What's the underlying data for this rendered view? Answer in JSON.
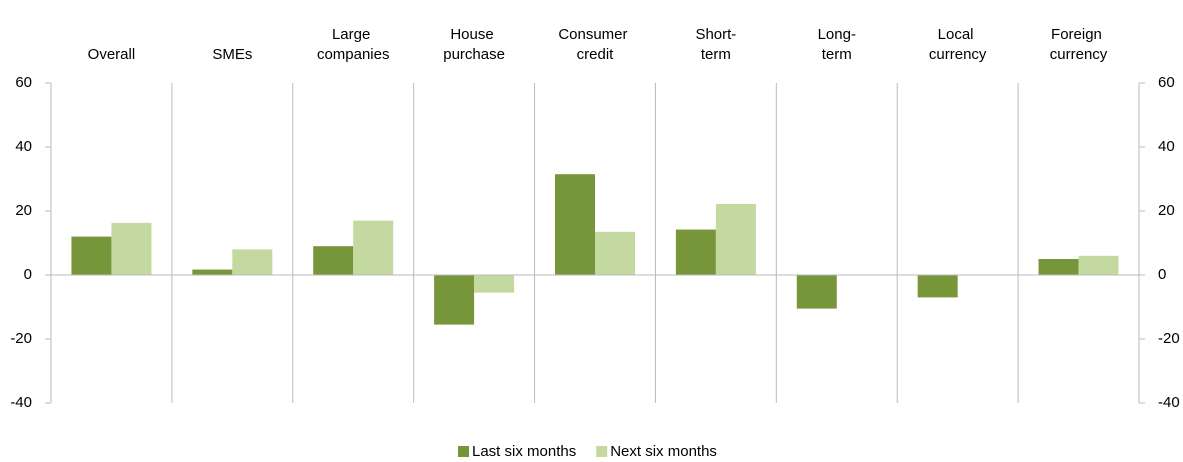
{
  "chart_data": {
    "type": "bar",
    "categories": [
      "Overall",
      "SMEs",
      "Large companies",
      "House purchase",
      "Consumer credit",
      "Short-term",
      "Long-term",
      "Local currency",
      "Foreign currency"
    ],
    "series": [
      {
        "name": "Last six months",
        "color": "#77963a",
        "values": [
          12,
          1.7,
          9,
          -15.5,
          31.5,
          14.2,
          -10.5,
          -7,
          5
        ]
      },
      {
        "name": "Next six months",
        "color": "#c4d9a0",
        "values": [
          16.3,
          8,
          17,
          -5.5,
          13.5,
          22.2,
          0,
          0,
          6
        ]
      }
    ],
    "ylim": [
      -40,
      60
    ],
    "yticks": [
      -40,
      -20,
      0,
      20,
      40,
      60
    ],
    "y2lim": [
      -40,
      60
    ],
    "y2ticks": [
      -40,
      -20,
      0,
      20,
      40,
      60
    ],
    "legend": "bottom"
  }
}
